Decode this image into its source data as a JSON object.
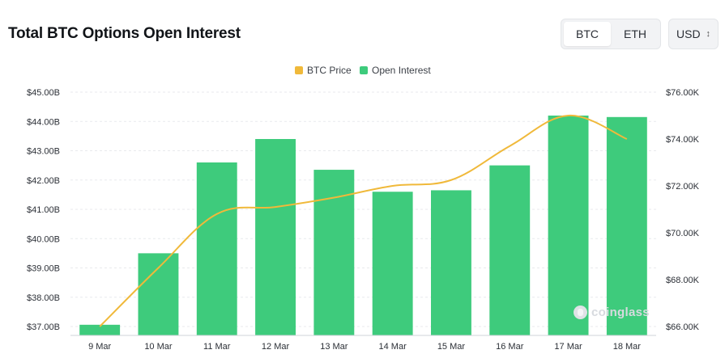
{
  "header": {
    "title": "Total BTC Options Open Interest",
    "asset_tabs": [
      {
        "label": "BTC",
        "active": true
      },
      {
        "label": "ETH",
        "active": false
      }
    ],
    "currency": {
      "selected": "USD",
      "icon": "chevron-updown-icon"
    }
  },
  "watermark": {
    "text": "coinglass",
    "icon": "coinglass-logo-icon"
  },
  "colors": {
    "open_interest": "#3ecb7c",
    "btc_price": "#f0b93a",
    "grid": "#e8eaed"
  },
  "chart_data": {
    "type": "bar",
    "categories": [
      "9 Mar",
      "10 Mar",
      "11 Mar",
      "12 Mar",
      "13 Mar",
      "14 Mar",
      "15 Mar",
      "16 Mar",
      "17 Mar",
      "18 Mar"
    ],
    "series": [
      {
        "name": "Open Interest",
        "type": "bar",
        "axis": "left",
        "unit": "USD billions",
        "values": [
          37.06,
          39.5,
          42.6,
          43.4,
          42.35,
          41.6,
          41.65,
          42.5,
          44.2,
          44.15
        ]
      },
      {
        "name": "BTC Price",
        "type": "line",
        "axis": "right",
        "unit": "USD thousands",
        "values": [
          66.0,
          68.5,
          70.8,
          71.1,
          71.5,
          72.0,
          72.25,
          73.7,
          75.0,
          74.0
        ]
      }
    ],
    "y_left": {
      "ticks": [
        "$37.00B",
        "$38.00B",
        "$39.00B",
        "$40.00B",
        "$41.00B",
        "$42.00B",
        "$43.00B",
        "$44.00B",
        "$45.00B"
      ],
      "min": 37,
      "max": 45
    },
    "y_right": {
      "ticks": [
        "$66.00K",
        "$68.00K",
        "$70.00K",
        "$72.00K",
        "$74.00K",
        "$76.00K"
      ],
      "min": 66,
      "max": 76
    },
    "grid": true,
    "legend": {
      "position": "top-center",
      "items": [
        "BTC Price",
        "Open Interest"
      ]
    }
  }
}
